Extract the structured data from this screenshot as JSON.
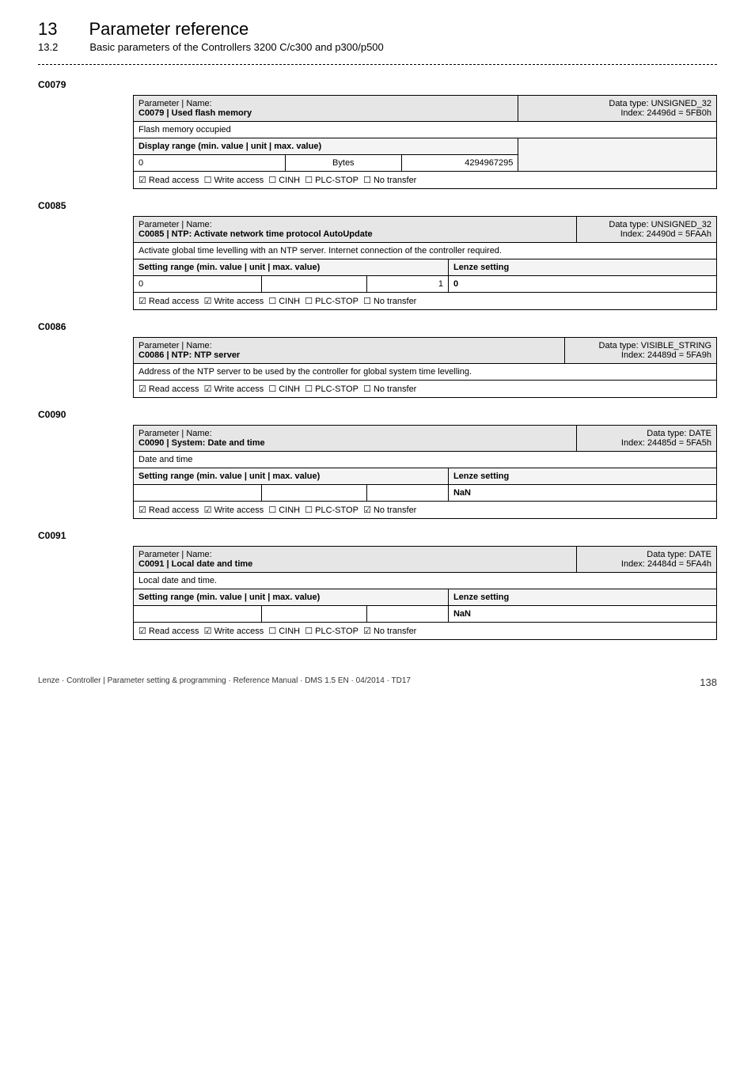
{
  "chapter": {
    "num": "13",
    "title": "Parameter reference",
    "subnum": "13.2",
    "subtitle": "Basic parameters of the Controllers 3200 C/c300 and p300/p500"
  },
  "c0079": {
    "id": "C0079",
    "label_pname": "Parameter | Name:",
    "header_name": "C0079 | Used flash memory",
    "dtype": "Data type: UNSIGNED_32",
    "index": "Index: 24496d = 5FB0h",
    "desc": "Flash memory occupied",
    "range_label": "Display range (min. value | unit | max. value)",
    "min": "0",
    "unit": "Bytes",
    "max": "4294967295",
    "access": {
      "read": true,
      "write": false,
      "cinh": false,
      "plcstop": false,
      "notransfer": false
    }
  },
  "c0085": {
    "id": "C0085",
    "label_pname": "Parameter | Name:",
    "header_name": "C0085 | NTP: Activate network time protocol AutoUpdate",
    "dtype": "Data type: UNSIGNED_32",
    "index": "Index: 24490d = 5FAAh",
    "desc": "Activate global time levelling with an NTP server. Internet connection of the controller required.",
    "range_label": "Setting range (min. value | unit | max. value)",
    "lenze_label": "Lenze setting",
    "min": "0",
    "unit": "",
    "max": "1",
    "lenze": "0",
    "access": {
      "read": true,
      "write": true,
      "cinh": false,
      "plcstop": false,
      "notransfer": false
    }
  },
  "c0086": {
    "id": "C0086",
    "label_pname": "Parameter | Name:",
    "header_name": "C0086 | NTP: NTP server",
    "dtype": "Data type: VISIBLE_STRING",
    "index": "Index: 24489d = 5FA9h",
    "desc": "Address of the NTP server to be used by the controller for global system time levelling.",
    "access": {
      "read": true,
      "write": true,
      "cinh": false,
      "plcstop": false,
      "notransfer": false
    }
  },
  "c0090": {
    "id": "C0090",
    "label_pname": "Parameter | Name:",
    "header_name": "C0090 | System: Date and time",
    "dtype": "Data type: DATE",
    "index": "Index: 24485d = 5FA5h",
    "desc": "Date and time",
    "range_label": "Setting range (min. value | unit | max. value)",
    "lenze_label": "Lenze setting",
    "min": "",
    "unit": "",
    "max": "",
    "lenze": "NaN",
    "access": {
      "read": true,
      "write": true,
      "cinh": false,
      "plcstop": false,
      "notransfer": true
    }
  },
  "c0091": {
    "id": "C0091",
    "label_pname": "Parameter | Name:",
    "header_name": "C0091 | Local date and time",
    "dtype": "Data type: DATE",
    "index": "Index: 24484d = 5FA4h",
    "desc": "Local date and time.",
    "range_label": "Setting range (min. value | unit | max. value)",
    "lenze_label": "Lenze setting",
    "min": "",
    "unit": "",
    "max": "",
    "lenze": "NaN",
    "access": {
      "read": true,
      "write": true,
      "cinh": false,
      "plcstop": false,
      "notransfer": true
    }
  },
  "access_labels": {
    "read": "Read access",
    "write": "Write access",
    "cinh": "CINH",
    "plcstop": "PLC-STOP",
    "notransfer": "No transfer"
  },
  "footer": {
    "left": "Lenze · Controller | Parameter setting & programming · Reference Manual · DMS 1.5 EN · 04/2014 · TD17",
    "page": "138"
  },
  "colors": {
    "header_bg": "#e6e6e6",
    "subhdr_bg": "#f4f4f4",
    "border": "#000000",
    "text": "#000000",
    "bg": "#ffffff"
  }
}
